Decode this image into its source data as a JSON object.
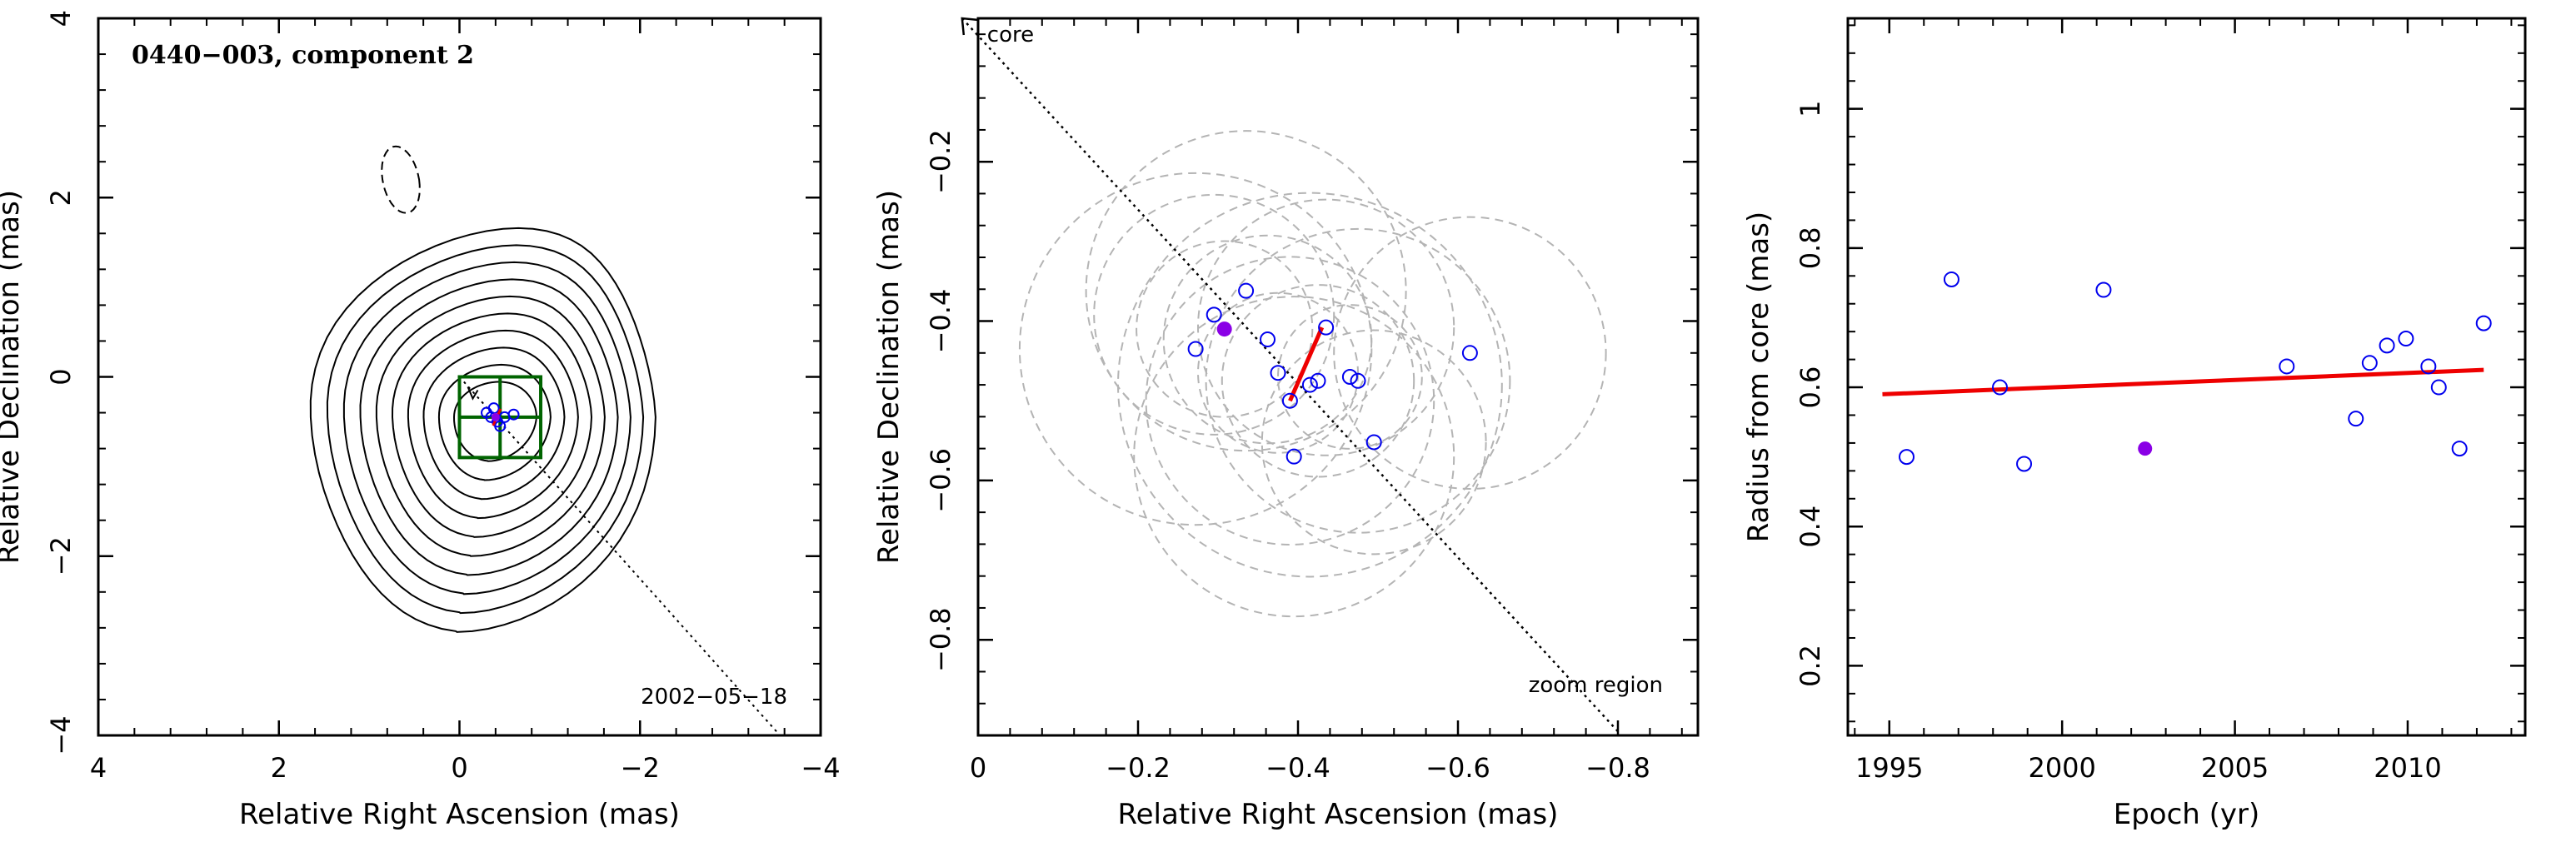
{
  "chart_data": [
    {
      "type": "contour",
      "title": "0440−003, component 2",
      "xlabel": "Relative Right Ascension (mas)",
      "ylabel": "Relative Declination (mas)",
      "xlim": [
        4,
        -4
      ],
      "ylim": [
        -4,
        4
      ],
      "x_ticks": [
        4,
        2,
        0,
        -2,
        -4
      ],
      "y_ticks": [
        4,
        2,
        0,
        -2,
        -4
      ],
      "x_tick_labels": [
        "4",
        "2",
        "0",
        "−2",
        "−4"
      ],
      "y_tick_labels": [
        "4",
        "2",
        "0",
        "−2",
        "−4"
      ],
      "epoch_label": "2002−05−18",
      "contour_center": [
        -0.4,
        -0.45
      ],
      "contour_levels": 10,
      "zoom_box": {
        "x": [
          0,
          -0.9
        ],
        "y": [
          0,
          -0.9
        ]
      },
      "core_direction": [
        -3.55,
        -4.0
      ],
      "points": [
        {
          "x": -0.3,
          "y": -0.4
        },
        {
          "x": -0.35,
          "y": -0.45
        },
        {
          "x": -0.42,
          "y": -0.5
        },
        {
          "x": -0.5,
          "y": -0.45
        },
        {
          "x": -0.6,
          "y": -0.42
        },
        {
          "x": -0.45,
          "y": -0.55
        },
        {
          "x": -0.38,
          "y": -0.35
        }
      ],
      "highlight_point": {
        "x": -0.4,
        "y": -0.45
      }
    },
    {
      "type": "scatter",
      "xlabel": "Relative Right Ascension (mas)",
      "ylabel": "Relative Declination (mas)",
      "xlim": [
        0,
        -0.9
      ],
      "ylim": [
        -0.92,
        -0.02
      ],
      "x_ticks": [
        0,
        -0.2,
        -0.4,
        -0.6,
        -0.8
      ],
      "y_ticks": [
        -0.2,
        -0.4,
        -0.6,
        -0.8
      ],
      "x_tick_labels": [
        "0",
        "−0.2",
        "−0.4",
        "−0.6",
        "−0.8"
      ],
      "y_tick_labels": [
        "−0.2",
        "−0.4",
        "−0.6",
        "−0.8"
      ],
      "core_label": "core",
      "zoom_label": "zoom region",
      "points": [
        {
          "x": -0.272,
          "y": -0.435
        },
        {
          "x": -0.295,
          "y": -0.392
        },
        {
          "x": -0.335,
          "y": -0.362
        },
        {
          "x": -0.362,
          "y": -0.423
        },
        {
          "x": -0.375,
          "y": -0.465
        },
        {
          "x": -0.39,
          "y": -0.5
        },
        {
          "x": -0.395,
          "y": -0.57
        },
        {
          "x": -0.415,
          "y": -0.48
        },
        {
          "x": -0.425,
          "y": -0.475
        },
        {
          "x": -0.435,
          "y": -0.408
        },
        {
          "x": -0.465,
          "y": -0.47
        },
        {
          "x": -0.475,
          "y": -0.475
        },
        {
          "x": -0.495,
          "y": -0.552
        },
        {
          "x": -0.615,
          "y": -0.44
        }
      ],
      "highlight_point": {
        "x": -0.308,
        "y": -0.41
      },
      "error_circles": [
        {
          "x": -0.272,
          "y": -0.435,
          "r": 0.22
        },
        {
          "x": -0.295,
          "y": -0.392,
          "r": 0.15
        },
        {
          "x": -0.335,
          "y": -0.362,
          "r": 0.2
        },
        {
          "x": -0.362,
          "y": -0.423,
          "r": 0.13
        },
        {
          "x": -0.375,
          "y": -0.465,
          "r": 0.1
        },
        {
          "x": -0.39,
          "y": -0.5,
          "r": 0.18
        },
        {
          "x": -0.395,
          "y": -0.57,
          "r": 0.2
        },
        {
          "x": -0.415,
          "y": -0.48,
          "r": 0.24
        },
        {
          "x": -0.425,
          "y": -0.475,
          "r": 0.12
        },
        {
          "x": -0.435,
          "y": -0.408,
          "r": 0.16
        },
        {
          "x": -0.465,
          "y": -0.47,
          "r": 0.09
        },
        {
          "x": -0.475,
          "y": -0.475,
          "r": 0.19
        },
        {
          "x": -0.495,
          "y": -0.552,
          "r": 0.14
        },
        {
          "x": -0.615,
          "y": -0.44,
          "r": 0.17
        },
        {
          "x": -0.308,
          "y": -0.41,
          "r": 0.11
        }
      ],
      "fit_line": {
        "x": [
          -0.39,
          -0.43
        ],
        "y": [
          -0.5,
          -0.408
        ]
      },
      "core_direction": {
        "x": [
          0.02,
          -0.8
        ],
        "y": [
          -0.02,
          -0.915
        ]
      }
    },
    {
      "type": "scatter",
      "xlabel": "Epoch (yr)",
      "ylabel": "Radius from core (mas)",
      "xlim": [
        1993.8,
        2013.4
      ],
      "ylim": [
        0.1,
        1.13
      ],
      "x_ticks": [
        1995,
        2000,
        2005,
        2010
      ],
      "y_ticks": [
        0.2,
        0.4,
        0.6,
        0.8,
        1
      ],
      "x_tick_labels": [
        "1995",
        "2000",
        "2005",
        "2010"
      ],
      "y_tick_labels": [
        "0.2",
        "0.4",
        "0.6",
        "0.8",
        "1"
      ],
      "points": [
        {
          "x": 1995.5,
          "y": 0.5
        },
        {
          "x": 1996.8,
          "y": 0.755
        },
        {
          "x": 1998.2,
          "y": 0.6
        },
        {
          "x": 1998.9,
          "y": 0.49
        },
        {
          "x": 2001.2,
          "y": 0.74
        },
        {
          "x": 2006.5,
          "y": 0.63
        },
        {
          "x": 2008.5,
          "y": 0.555
        },
        {
          "x": 2008.9,
          "y": 0.635
        },
        {
          "x": 2009.4,
          "y": 0.66
        },
        {
          "x": 2009.95,
          "y": 0.67
        },
        {
          "x": 2010.6,
          "y": 0.63
        },
        {
          "x": 2010.9,
          "y": 0.6
        },
        {
          "x": 2011.5,
          "y": 0.512
        },
        {
          "x": 2012.2,
          "y": 0.692
        }
      ],
      "highlight_point": {
        "x": 2002.4,
        "y": 0.512
      },
      "fit_line": {
        "x": [
          1994.8,
          2012.2
        ],
        "y": [
          0.59,
          0.625
        ]
      }
    }
  ],
  "colors": {
    "axes": "#000000",
    "open_points": "#0000ee",
    "highlight": "#8a00e6",
    "fit": "#ee0000",
    "error_circles": "#b4b4b4",
    "zoom_box": "#006400",
    "contours": "#000000"
  }
}
